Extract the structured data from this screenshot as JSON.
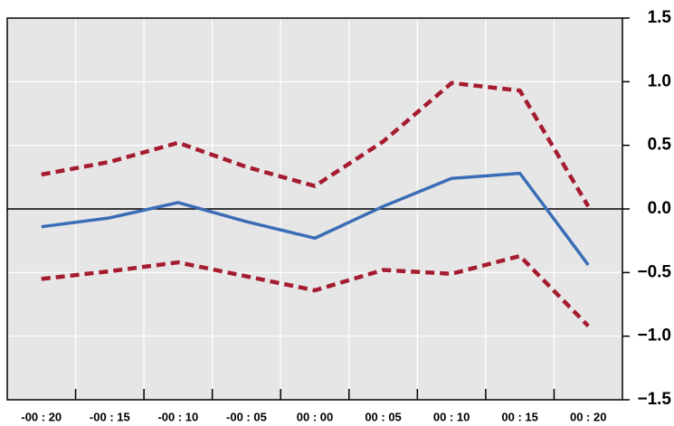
{
  "chart_data": {
    "type": "line",
    "categories": [
      "-00 : 20",
      "-00 : 15",
      "-00 : 10",
      "-00 : 05",
      "00 : 00",
      "00 : 05",
      "00 : 10",
      "00 : 15",
      "00 : 20"
    ],
    "series": [
      {
        "color": "#a51c30",
        "dash": true,
        "values": [
          0.27,
          0.37,
          0.52,
          0.33,
          0.18,
          0.53,
          0.99,
          0.93,
          0.02
        ]
      },
      {
        "color": "#3a6db5",
        "dash": false,
        "values": [
          -0.14,
          -0.07,
          0.05,
          -0.1,
          -0.23,
          0.02,
          0.24,
          0.28,
          -0.44
        ]
      },
      {
        "color": "#a51c30",
        "dash": true,
        "values": [
          -0.55,
          -0.49,
          -0.42,
          -0.53,
          -0.64,
          -0.48,
          -0.51,
          -0.37,
          -0.92
        ]
      }
    ],
    "ylim": [
      -1.5,
      1.5
    ],
    "yticks": [
      1.5,
      {
        "value": 1,
        "label": "1.0"
      },
      0.5,
      {
        "value": 0,
        "label": "0.0"
      },
      {
        "value": -0.5,
        "label": "−0.5"
      },
      {
        "value": -1,
        "label": "−1.0"
      },
      {
        "value": -1.5,
        "label": "−1.5"
      }
    ],
    "grid": true
  }
}
